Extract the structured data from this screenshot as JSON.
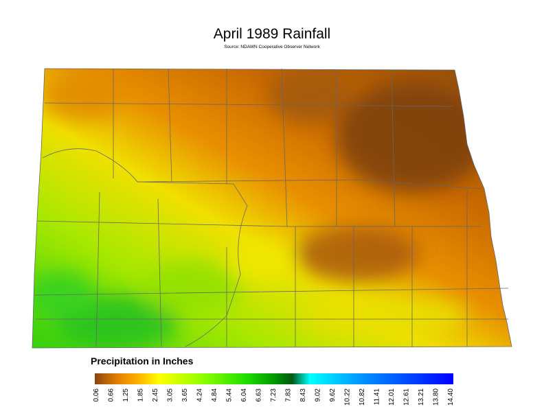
{
  "header": {
    "title": "April 1989 Rainfall",
    "subtitle": "Source: NDAWN Cooperative Observer Network"
  },
  "legend": {
    "title": "Precipitation in Inches",
    "ticks": [
      "0.06",
      "0.66",
      "1.25",
      "1.85",
      "2.45",
      "3.05",
      "3.65",
      "4.24",
      "4.84",
      "5.44",
      "6.04",
      "6.63",
      "7.23",
      "7.83",
      "8.43",
      "9.02",
      "9.62",
      "10.22",
      "10.82",
      "11.41",
      "12.01",
      "12.61",
      "13.21",
      "13.80",
      "14.40"
    ]
  }
}
